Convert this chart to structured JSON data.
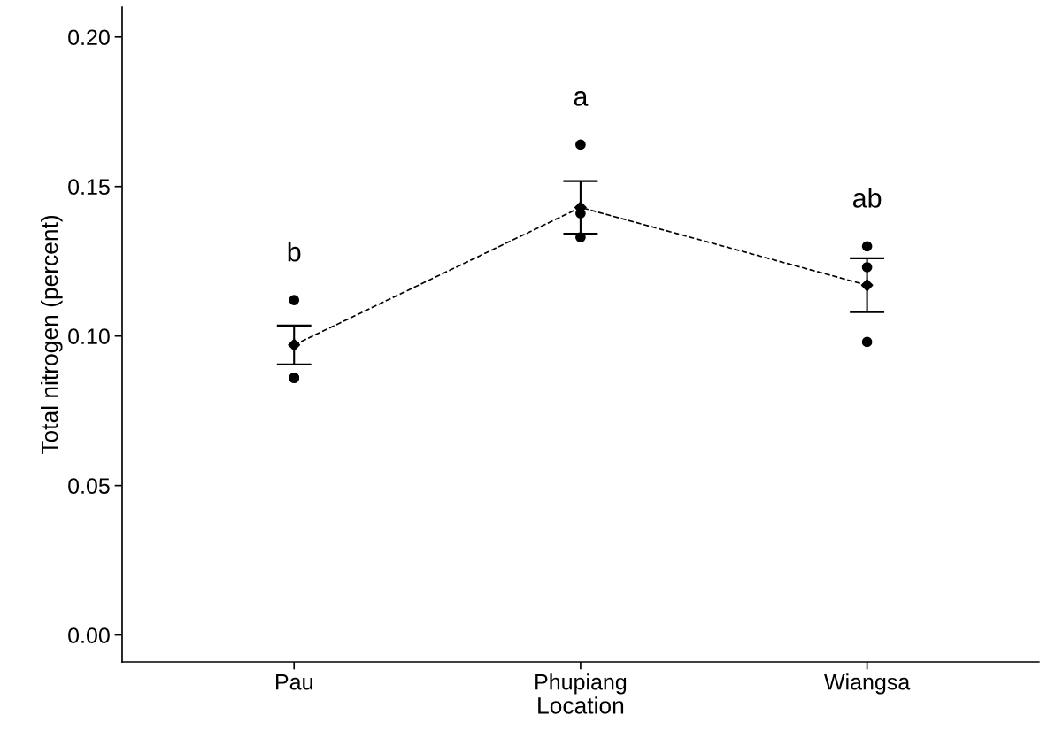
{
  "chart_data": {
    "type": "line",
    "xlabel": "Location",
    "ylabel": "Total nitrogen (percent)",
    "categories": [
      "Pau",
      "Phupiang",
      "Wiangsa"
    ],
    "ylim": [
      -0.009,
      0.21
    ],
    "yticks": [
      {
        "value": 0,
        "label": "0.00"
      },
      {
        "value": 0.05,
        "label": "0.05"
      },
      {
        "value": 0.1,
        "label": "0.10"
      },
      {
        "value": 0.15,
        "label": "0.15"
      },
      {
        "value": 0.2,
        "label": "0.20"
      }
    ],
    "grid": false,
    "series": [
      {
        "type": "scatter",
        "color": "#000000",
        "marker": "circle",
        "x": [
          "Pau",
          "Pau",
          "Pau",
          "Phupiang",
          "Phupiang",
          "Phupiang",
          "Wiangsa",
          "Wiangsa",
          "Wiangsa"
        ],
        "values": [
          0.086,
          0.112,
          0.086,
          0.133,
          0.164,
          0.141,
          0.098,
          0.13,
          0.123
        ]
      },
      {
        "color": "#000000",
        "marker": "diamond",
        "line_style": "dashed",
        "values": [
          0.097,
          0.143,
          0.117
        ],
        "errors": [
          0.0065,
          0.0088,
          0.009
        ]
      }
    ],
    "annotations": [
      "b",
      "a",
      "ab"
    ]
  }
}
